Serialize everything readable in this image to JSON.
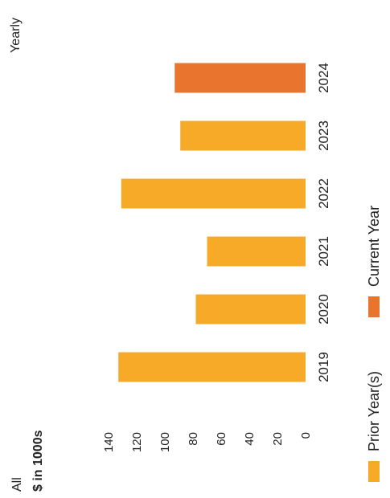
{
  "header": {
    "scope_label": "All",
    "period_label": "Yearly"
  },
  "chart_data": {
    "type": "bar",
    "ylabel": "$ in 1000s",
    "ylim": [
      0,
      140
    ],
    "yticks": [
      0,
      20,
      40,
      60,
      80,
      100,
      120,
      140
    ],
    "categories": [
      "2019",
      "2020",
      "2021",
      "2022",
      "2023",
      "2024"
    ],
    "values": [
      133,
      78,
      70,
      131,
      89,
      93
    ],
    "bar_groups": [
      "Prior Year(s)",
      "Prior Year(s)",
      "Prior Year(s)",
      "Prior Year(s)",
      "Prior Year(s)",
      "Current Year"
    ],
    "legend": [
      {
        "name": "Prior Year(s)",
        "color": "#F7A928"
      },
      {
        "name": "Current Year",
        "color": "#E8742E"
      }
    ],
    "legend_position": "bottom",
    "grid": false
  }
}
